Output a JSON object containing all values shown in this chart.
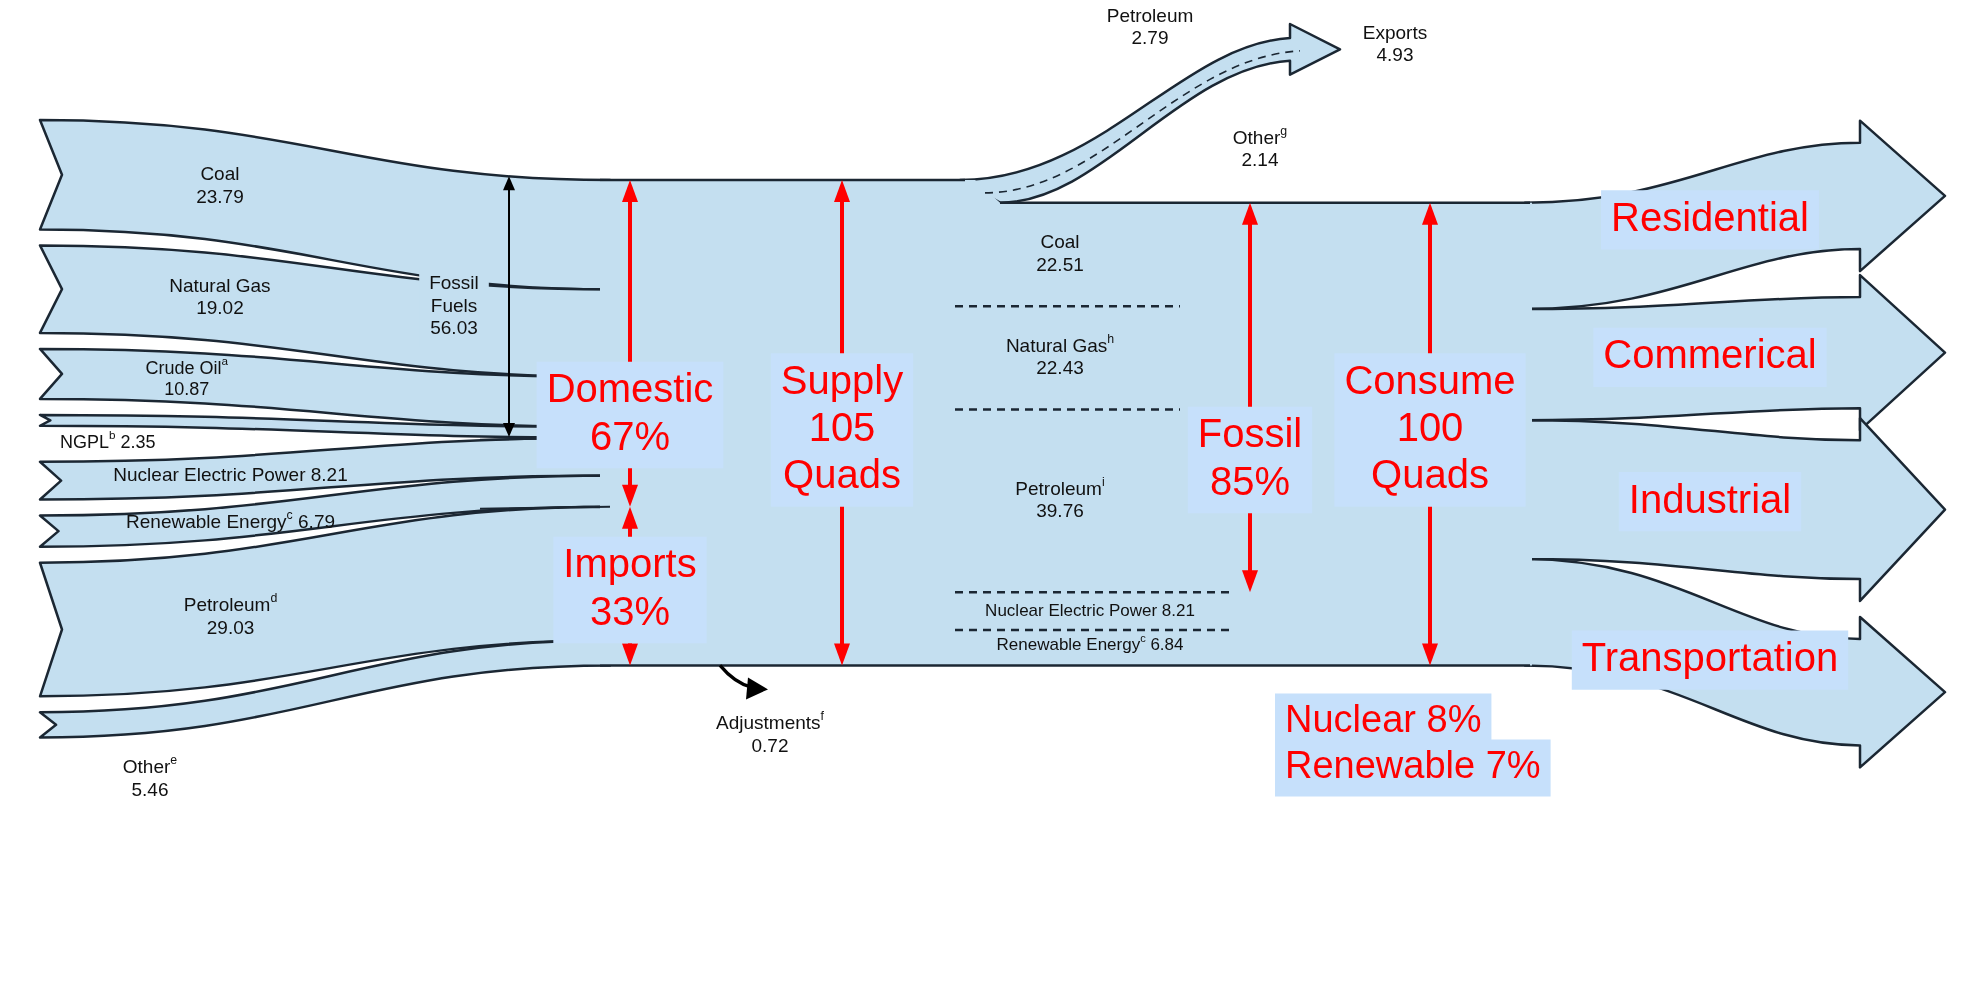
{
  "chart_data": {
    "type": "other",
    "categories": [
      "Coal",
      "Natural Gas",
      "Crude Oil$^{a}$",
      "NGPL$^{b}$",
      "Nuclear Electric Power",
      "Renewable Energy$^{c}$",
      "Petroleum$^{d}$",
      "Other$^{e}$",
      "Fossil Fuels",
      "Exports",
      "Petroleum",
      "Other$^{g}$",
      "Adjustments$^{f}$",
      "Coal",
      "Natural Gas$^{h}$",
      "Petroleum$^{i}$",
      "Nuclear Electric Power",
      "Renewable Energy$^{c}$"
    ],
    "data_labels": true,
    "values": [
      23.79,
      19.02,
      10.87,
      2.35,
      8.21,
      6.79,
      29.03,
      5.46,
      56.03,
      4.93,
      2.79,
      2.14,
      0.72,
      22.51,
      22.43,
      39.76,
      8.21,
      6.84
    ],
    "annotations": [
      "Domestic\n67%",
      "Imports\n33%",
      "Supply\n105\nQuads",
      "Fossil\n85%",
      "Consume\n100\nQuads",
      "Nuclear 8%",
      "Renewable 7%",
      "Residential",
      "Commerical",
      "Industrial",
      "Transportation"
    ]
  }
}
